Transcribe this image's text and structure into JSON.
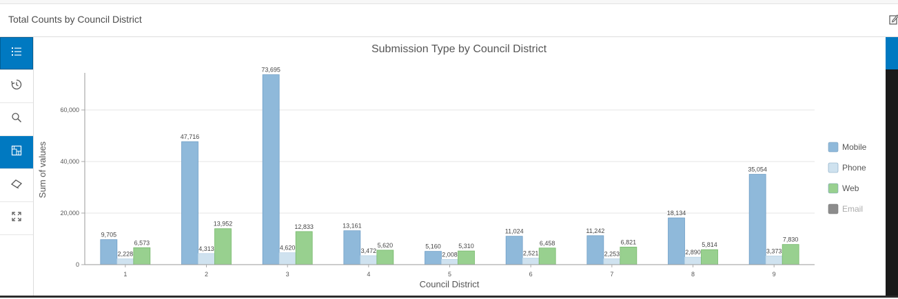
{
  "panel": {
    "title": "Total Counts by Council District"
  },
  "sidebar": {
    "items": [
      {
        "name": "legend-list-icon",
        "active": true
      },
      {
        "name": "refresh-time-icon",
        "active": false
      },
      {
        "name": "search-icon",
        "active": false
      },
      {
        "name": "layer-map-icon",
        "active": true
      },
      {
        "name": "eraser-icon",
        "active": false
      },
      {
        "name": "fullscreen-icon",
        "active": false
      }
    ]
  },
  "colors": {
    "accent": "#0079c1",
    "mobile": "#8fb9da",
    "phone": "#cfe2ef",
    "web": "#98d08f",
    "email": "#8c8c8c"
  },
  "chart_data": {
    "type": "bar",
    "title": "Submission Type by Council District",
    "xlabel": "Council District",
    "ylabel": "Sum of values",
    "ylim": [
      0,
      74000
    ],
    "yticks": [
      0,
      20000,
      40000,
      60000
    ],
    "ytick_labels": [
      "0",
      "20,000",
      "40,000",
      "60,000"
    ],
    "grid": true,
    "legend_position": "right",
    "categories": [
      "1",
      "2",
      "3",
      "4",
      "5",
      "6",
      "7",
      "8",
      "9"
    ],
    "series": [
      {
        "name": "Mobile",
        "color": "#8fb9da",
        "values": [
          9705,
          47716,
          73695,
          13161,
          5160,
          11024,
          11242,
          18134,
          35054
        ],
        "labels": [
          "9,705",
          "47,716",
          "73,695",
          "13,161",
          "5,160",
          "11,024",
          "11,242",
          "18,134",
          "35,054"
        ]
      },
      {
        "name": "Phone",
        "color": "#cfe2ef",
        "values": [
          2228,
          4313,
          4620,
          3472,
          2008,
          2521,
          2253,
          2890,
          3373
        ],
        "labels": [
          "2,228",
          "4,313",
          "4,620",
          "3,472",
          "2,008",
          "2,521",
          "2,253",
          "2,890",
          "3,373"
        ]
      },
      {
        "name": "Web",
        "color": "#98d08f",
        "values": [
          6573,
          13952,
          12833,
          5620,
          5310,
          6458,
          6821,
          5814,
          7830
        ],
        "labels": [
          "6,573",
          "13,952",
          "12,833",
          "5,620",
          "5,310",
          "6,458",
          "6,821",
          "5,814",
          "7,830"
        ]
      },
      {
        "name": "Email",
        "color": "#8c8c8c",
        "values": [
          0,
          0,
          0,
          0,
          0,
          0,
          0,
          0,
          0
        ],
        "hidden": true
      }
    ]
  }
}
